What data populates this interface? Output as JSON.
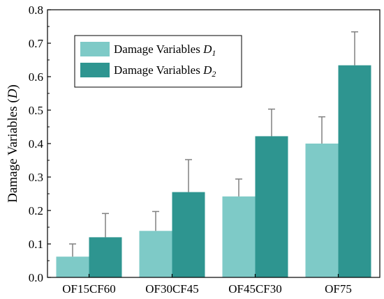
{
  "chart_data": {
    "type": "bar",
    "categories": [
      "OF15CF60",
      "OF30CF45",
      "OF45CF30",
      "OF75"
    ],
    "series": [
      {
        "name": "Damage Variables D1",
        "legend_label": "Damage Variables ",
        "legend_symbol": "D",
        "legend_subscript": "1",
        "color": "#7ecac7",
        "values": [
          0.062,
          0.139,
          0.242,
          0.4
        ],
        "error_upper": [
          0.1,
          0.197,
          0.294,
          0.48
        ]
      },
      {
        "name": "Damage Variables D2",
        "legend_label": "Damage Variables ",
        "legend_symbol": "D",
        "legend_subscript": "2",
        "color": "#2e9590",
        "values": [
          0.12,
          0.255,
          0.422,
          0.634
        ],
        "error_upper": [
          0.191,
          0.352,
          0.503,
          0.734
        ]
      }
    ],
    "ylabel": "Damage Variables (",
    "ylabel_symbol": "D",
    "ylabel_suffix": ")",
    "ylim": [
      0,
      0.8
    ],
    "yticks": [
      "0.0",
      "0.1",
      "0.2",
      "0.3",
      "0.4",
      "0.5",
      "0.6",
      "0.7",
      "0.8"
    ],
    "legend_position": "top-left",
    "grid": false,
    "error_bar_color": "#808080"
  }
}
